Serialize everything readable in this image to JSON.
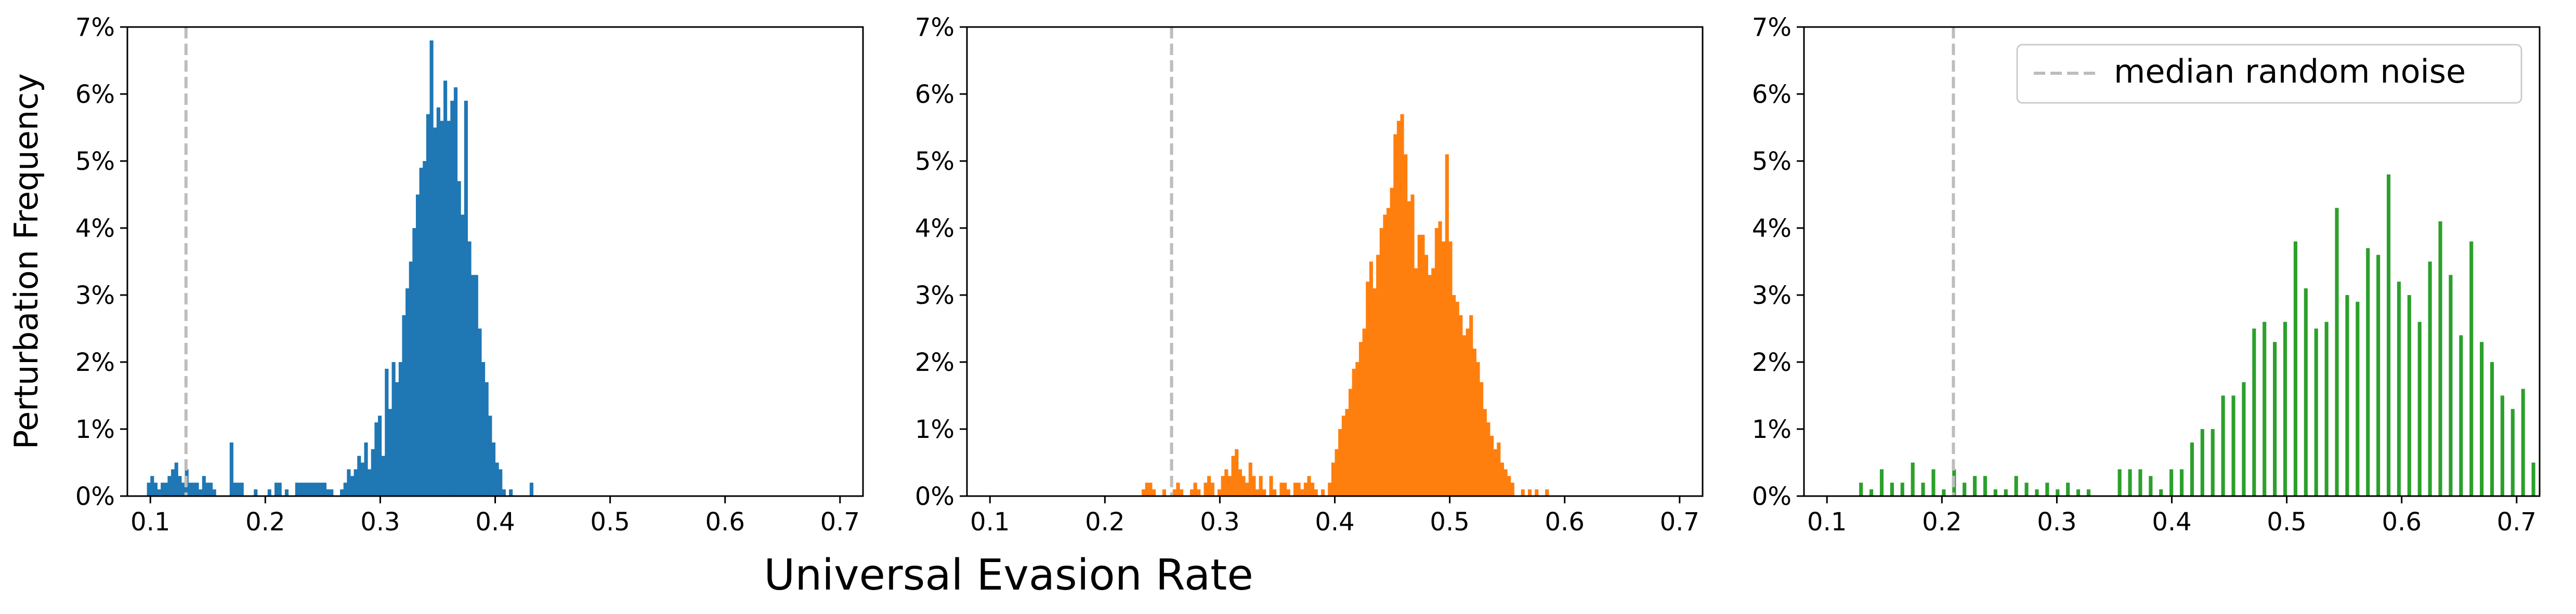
{
  "figure": {
    "ylabel": "Perturbation Frequency",
    "xlabel": "Universal Evasion Rate",
    "legend_label": "median random noise"
  },
  "chart_data": [
    {
      "type": "histogram",
      "color": "#1f77b4",
      "x_range": [
        0.08,
        0.72
      ],
      "xticks": [
        0.1,
        0.2,
        0.3,
        0.4,
        0.5,
        0.6,
        0.7
      ],
      "xtick_labels": [
        "0.1",
        "0.2",
        "0.3",
        "0.4",
        "0.5",
        "0.6",
        "0.7"
      ],
      "ylim": [
        0,
        7
      ],
      "yticks": [
        0,
        1,
        2,
        3,
        4,
        5,
        6,
        7
      ],
      "ytick_labels": [
        "0%",
        "1%",
        "2%",
        "3%",
        "4%",
        "5%",
        "6%",
        "7%"
      ],
      "median_random_noise": 0.131,
      "bins": [
        [
          0.097,
          0.2
        ],
        [
          0.1,
          0.3
        ],
        [
          0.103,
          0.2
        ],
        [
          0.106,
          0.1
        ],
        [
          0.109,
          0.2
        ],
        [
          0.112,
          0.2
        ],
        [
          0.115,
          0.3
        ],
        [
          0.118,
          0.4
        ],
        [
          0.121,
          0.5
        ],
        [
          0.124,
          0.3
        ],
        [
          0.127,
          0.2
        ],
        [
          0.13,
          0.4
        ],
        [
          0.133,
          0.2
        ],
        [
          0.136,
          0.2
        ],
        [
          0.139,
          0.2
        ],
        [
          0.142,
          0.1
        ],
        [
          0.145,
          0.3
        ],
        [
          0.148,
          0.2
        ],
        [
          0.151,
          0.2
        ],
        [
          0.154,
          0.1
        ],
        [
          0.169,
          0.8
        ],
        [
          0.172,
          0.2
        ],
        [
          0.175,
          0.2
        ],
        [
          0.178,
          0.2
        ],
        [
          0.19,
          0.1
        ],
        [
          0.202,
          0.1
        ],
        [
          0.208,
          0.2
        ],
        [
          0.211,
          0.2
        ],
        [
          0.217,
          0.1
        ],
        [
          0.226,
          0.2
        ],
        [
          0.229,
          0.2
        ],
        [
          0.232,
          0.2
        ],
        [
          0.235,
          0.2
        ],
        [
          0.238,
          0.2
        ],
        [
          0.241,
          0.2
        ],
        [
          0.244,
          0.2
        ],
        [
          0.247,
          0.2
        ],
        [
          0.25,
          0.2
        ],
        [
          0.253,
          0.1
        ],
        [
          0.256,
          0.1
        ],
        [
          0.265,
          0.1
        ],
        [
          0.268,
          0.2
        ],
        [
          0.271,
          0.4
        ],
        [
          0.274,
          0.3
        ],
        [
          0.277,
          0.4
        ],
        [
          0.28,
          0.6
        ],
        [
          0.283,
          0.5
        ],
        [
          0.286,
          0.8
        ],
        [
          0.289,
          0.4
        ],
        [
          0.292,
          0.7
        ],
        [
          0.295,
          1.1
        ],
        [
          0.298,
          1.2
        ],
        [
          0.301,
          0.6
        ],
        [
          0.304,
          1.9
        ],
        [
          0.307,
          1.3
        ],
        [
          0.31,
          2.0
        ],
        [
          0.313,
          1.7
        ],
        [
          0.316,
          2.0
        ],
        [
          0.319,
          2.7
        ],
        [
          0.322,
          3.1
        ],
        [
          0.325,
          3.5
        ],
        [
          0.328,
          4.0
        ],
        [
          0.331,
          4.5
        ],
        [
          0.334,
          4.9
        ],
        [
          0.337,
          5.0
        ],
        [
          0.34,
          5.7
        ],
        [
          0.343,
          6.8
        ],
        [
          0.346,
          5.5
        ],
        [
          0.349,
          5.8
        ],
        [
          0.352,
          5.6
        ],
        [
          0.355,
          6.2
        ],
        [
          0.358,
          5.6
        ],
        [
          0.361,
          5.9
        ],
        [
          0.364,
          6.1
        ],
        [
          0.367,
          4.7
        ],
        [
          0.37,
          4.2
        ],
        [
          0.373,
          5.9
        ],
        [
          0.376,
          3.8
        ],
        [
          0.379,
          3.3
        ],
        [
          0.382,
          3.3
        ],
        [
          0.385,
          2.5
        ],
        [
          0.388,
          2.0
        ],
        [
          0.391,
          1.7
        ],
        [
          0.394,
          1.2
        ],
        [
          0.397,
          0.8
        ],
        [
          0.4,
          0.5
        ],
        [
          0.403,
          0.4
        ],
        [
          0.406,
          0.1
        ],
        [
          0.412,
          0.1
        ],
        [
          0.43,
          0.2
        ]
      ]
    },
    {
      "type": "histogram",
      "color": "#ff7f0e",
      "x_range": [
        0.08,
        0.72
      ],
      "xticks": [
        0.1,
        0.2,
        0.3,
        0.4,
        0.5,
        0.6,
        0.7
      ],
      "xtick_labels": [
        "0.1",
        "0.2",
        "0.3",
        "0.4",
        "0.5",
        "0.6",
        "0.7"
      ],
      "ylim": [
        0,
        7
      ],
      "yticks": [
        0,
        1,
        2,
        3,
        4,
        5,
        6,
        7
      ],
      "ytick_labels": [
        "0%",
        "1%",
        "2%",
        "3%",
        "4%",
        "5%",
        "6%",
        "7%"
      ],
      "median_random_noise": 0.258,
      "bins": [
        [
          0.232,
          0.1
        ],
        [
          0.235,
          0.2
        ],
        [
          0.238,
          0.2
        ],
        [
          0.241,
          0.1
        ],
        [
          0.25,
          0.1
        ],
        [
          0.259,
          0.1
        ],
        [
          0.262,
          0.2
        ],
        [
          0.265,
          0.1
        ],
        [
          0.274,
          0.1
        ],
        [
          0.277,
          0.2
        ],
        [
          0.28,
          0.1
        ],
        [
          0.286,
          0.2
        ],
        [
          0.289,
          0.3
        ],
        [
          0.292,
          0.2
        ],
        [
          0.298,
          0.1
        ],
        [
          0.301,
          0.3
        ],
        [
          0.304,
          0.4
        ],
        [
          0.307,
          0.3
        ],
        [
          0.31,
          0.6
        ],
        [
          0.313,
          0.7
        ],
        [
          0.316,
          0.4
        ],
        [
          0.319,
          0.3
        ],
        [
          0.322,
          0.2
        ],
        [
          0.325,
          0.5
        ],
        [
          0.328,
          0.3
        ],
        [
          0.331,
          0.1
        ],
        [
          0.334,
          0.3
        ],
        [
          0.337,
          0.1
        ],
        [
          0.343,
          0.3
        ],
        [
          0.346,
          0.1
        ],
        [
          0.352,
          0.2
        ],
        [
          0.355,
          0.2
        ],
        [
          0.358,
          0.1
        ],
        [
          0.364,
          0.2
        ],
        [
          0.367,
          0.2
        ],
        [
          0.37,
          0.1
        ],
        [
          0.373,
          0.2
        ],
        [
          0.376,
          0.3
        ],
        [
          0.379,
          0.2
        ],
        [
          0.382,
          0.1
        ],
        [
          0.388,
          0.1
        ],
        [
          0.394,
          0.2
        ],
        [
          0.397,
          0.5
        ],
        [
          0.4,
          0.7
        ],
        [
          0.403,
          1.0
        ],
        [
          0.406,
          1.2
        ],
        [
          0.409,
          1.3
        ],
        [
          0.412,
          1.6
        ],
        [
          0.415,
          1.9
        ],
        [
          0.418,
          2.0
        ],
        [
          0.421,
          2.3
        ],
        [
          0.424,
          2.5
        ],
        [
          0.427,
          3.2
        ],
        [
          0.43,
          3.5
        ],
        [
          0.433,
          3.1
        ],
        [
          0.436,
          3.6
        ],
        [
          0.439,
          4.0
        ],
        [
          0.442,
          4.2
        ],
        [
          0.445,
          4.3
        ],
        [
          0.448,
          4.6
        ],
        [
          0.451,
          5.4
        ],
        [
          0.454,
          5.6
        ],
        [
          0.457,
          5.7
        ],
        [
          0.46,
          5.1
        ],
        [
          0.463,
          4.4
        ],
        [
          0.466,
          4.5
        ],
        [
          0.469,
          3.4
        ],
        [
          0.472,
          3.9
        ],
        [
          0.475,
          3.9
        ],
        [
          0.478,
          3.6
        ],
        [
          0.481,
          3.3
        ],
        [
          0.484,
          3.4
        ],
        [
          0.487,
          4.0
        ],
        [
          0.49,
          4.1
        ],
        [
          0.493,
          3.8
        ],
        [
          0.496,
          5.1
        ],
        [
          0.499,
          3.8
        ],
        [
          0.502,
          3.0
        ],
        [
          0.505,
          2.9
        ],
        [
          0.508,
          2.7
        ],
        [
          0.511,
          2.4
        ],
        [
          0.514,
          2.5
        ],
        [
          0.517,
          2.7
        ],
        [
          0.52,
          2.2
        ],
        [
          0.523,
          2.0
        ],
        [
          0.526,
          1.7
        ],
        [
          0.529,
          1.3
        ],
        [
          0.532,
          1.1
        ],
        [
          0.535,
          0.9
        ],
        [
          0.538,
          0.7
        ],
        [
          0.541,
          0.8
        ],
        [
          0.544,
          0.5
        ],
        [
          0.547,
          0.4
        ],
        [
          0.55,
          0.3
        ],
        [
          0.553,
          0.2
        ],
        [
          0.562,
          0.1
        ],
        [
          0.568,
          0.1
        ],
        [
          0.574,
          0.1
        ],
        [
          0.583,
          0.1
        ]
      ]
    },
    {
      "type": "histogram",
      "color": "#2ca02c",
      "x_range": [
        0.08,
        0.72
      ],
      "xticks": [
        0.1,
        0.2,
        0.3,
        0.4,
        0.5,
        0.6,
        0.7
      ],
      "xtick_labels": [
        "0.1",
        "0.2",
        "0.3",
        "0.4",
        "0.5",
        "0.6",
        "0.7"
      ],
      "ylim": [
        0,
        7
      ],
      "yticks": [
        0,
        1,
        2,
        3,
        4,
        5,
        6,
        7
      ],
      "ytick_labels": [
        "0%",
        "1%",
        "2%",
        "3%",
        "4%",
        "5%",
        "6%",
        "7%"
      ],
      "median_random_noise": 0.21,
      "legend": {
        "position": "upper right",
        "label": "median random noise"
      },
      "bins": [
        [
          0.128,
          0.2
        ],
        [
          0.137,
          0.1
        ],
        [
          0.146,
          0.4
        ],
        [
          0.155,
          0.2
        ],
        [
          0.164,
          0.2
        ],
        [
          0.173,
          0.5
        ],
        [
          0.182,
          0.2
        ],
        [
          0.191,
          0.4
        ],
        [
          0.2,
          0.1
        ],
        [
          0.209,
          0.4
        ],
        [
          0.218,
          0.2
        ],
        [
          0.227,
          0.3
        ],
        [
          0.236,
          0.3
        ],
        [
          0.245,
          0.1
        ],
        [
          0.254,
          0.1
        ],
        [
          0.263,
          0.3
        ],
        [
          0.272,
          0.2
        ],
        [
          0.281,
          0.1
        ],
        [
          0.29,
          0.2
        ],
        [
          0.299,
          0.1
        ],
        [
          0.308,
          0.2
        ],
        [
          0.317,
          0.1
        ],
        [
          0.326,
          0.1
        ],
        [
          0.353,
          0.4
        ],
        [
          0.362,
          0.4
        ],
        [
          0.371,
          0.4
        ],
        [
          0.38,
          0.3
        ],
        [
          0.389,
          0.1
        ],
        [
          0.398,
          0.4
        ],
        [
          0.407,
          0.4
        ],
        [
          0.416,
          0.8
        ],
        [
          0.425,
          1.0
        ],
        [
          0.434,
          1.0
        ],
        [
          0.443,
          1.5
        ],
        [
          0.452,
          1.5
        ],
        [
          0.461,
          1.7
        ],
        [
          0.47,
          2.5
        ],
        [
          0.479,
          2.6
        ],
        [
          0.488,
          2.3
        ],
        [
          0.497,
          2.6
        ],
        [
          0.506,
          3.8
        ],
        [
          0.515,
          3.1
        ],
        [
          0.524,
          2.5
        ],
        [
          0.533,
          2.6
        ],
        [
          0.542,
          4.3
        ],
        [
          0.551,
          3.0
        ],
        [
          0.56,
          2.9
        ],
        [
          0.569,
          3.7
        ],
        [
          0.578,
          3.6
        ],
        [
          0.587,
          4.8
        ],
        [
          0.596,
          3.2
        ],
        [
          0.605,
          3.0
        ],
        [
          0.614,
          2.6
        ],
        [
          0.623,
          3.5
        ],
        [
          0.632,
          4.1
        ],
        [
          0.641,
          3.3
        ],
        [
          0.65,
          2.4
        ],
        [
          0.659,
          3.8
        ],
        [
          0.668,
          2.3
        ],
        [
          0.677,
          2.0
        ],
        [
          0.686,
          1.5
        ],
        [
          0.695,
          1.3
        ],
        [
          0.704,
          1.6
        ],
        [
          0.713,
          0.5
        ]
      ]
    }
  ]
}
